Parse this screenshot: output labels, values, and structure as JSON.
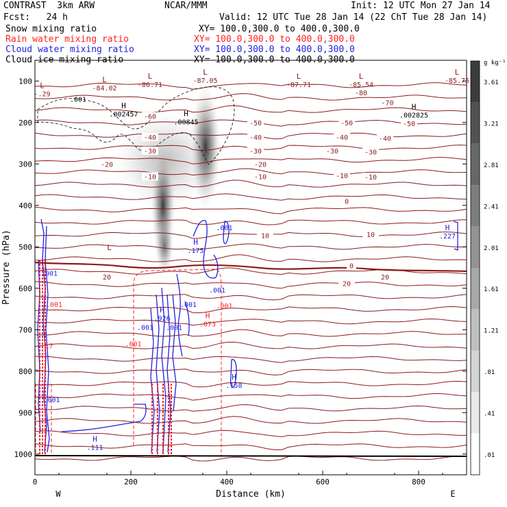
{
  "header": {
    "model": "CONTRAST  3km ARW",
    "center": "NCAR/MMM",
    "init": "Init: 12 UTC Mon 27 Jan 14",
    "fcst": "Fcst:   24 h",
    "valid": "Valid: 12 UTC Tue 28 Jan 14 (22 ChT Tue 28 Jan 14)"
  },
  "fields": [
    {
      "name": "Snow mixing ratio",
      "xy": "XY= 100.0,300.0 to 400.0,300.0",
      "color": "#000000"
    },
    {
      "name": "Rain water mixing ratio",
      "xy": "XY= 100.0,300.0 to 400.0,300.0",
      "color": "#ff2020"
    },
    {
      "name": "Cloud water mixing ratio",
      "xy": "XY= 100.0,300.0 to 400.0,300.0",
      "color": "#2020e0"
    },
    {
      "name": "Cloud ice mixing ratio",
      "xy": "XY= 100.0,300.0 to 400.0,300.0",
      "color": "#000000"
    }
  ],
  "colors": {
    "temperature": "#8b1a1a",
    "rain": "#ff2020",
    "cloud_water": "#2020e0",
    "ice": "#000000"
  },
  "chart_data": {
    "type": "cross-section",
    "xlabel": "Distance (km)",
    "ylabel": "Pressure (hPa)",
    "x_ticks": [
      0,
      200,
      400,
      600,
      800
    ],
    "x_tick_labels": [
      "0",
      "200",
      "400",
      "600",
      "800"
    ],
    "y_ticks": [
      100,
      200,
      300,
      400,
      500,
      600,
      700,
      800,
      900,
      1000
    ],
    "y_tick_labels": [
      "100",
      "200",
      "300",
      "400",
      "500",
      "600",
      "700",
      "800",
      "900",
      "1000"
    ],
    "xlim": [
      0,
      900
    ],
    "ylim": [
      1050,
      50
    ],
    "end_labels": {
      "left": "W",
      "right": "E"
    },
    "colorbar": {
      "unit": "g kg⁻¹",
      "labels": [
        "3.61",
        "3.21",
        "2.81",
        "2.41",
        "2.01",
        "1.61",
        "1.21",
        ".81",
        ".41",
        ".01"
      ],
      "values": [
        3.61,
        3.21,
        2.81,
        2.41,
        2.01,
        1.61,
        1.21,
        0.81,
        0.41,
        0.01
      ]
    },
    "temperature_contours": [
      {
        "label": "-80",
        "p": 128
      },
      {
        "label": "-70",
        "p": 160
      },
      {
        "label": "-60",
        "p": 185
      },
      {
        "label": "-50",
        "p": 205
      },
      {
        "label": "-40",
        "p": 235
      },
      {
        "label": "-30",
        "p": 268
      },
      {
        "label": "-20",
        "p": 300
      },
      {
        "label": "-10",
        "p": 330
      },
      {
        "label": "0",
        "p": 390
      },
      {
        "label": "10",
        "p": 470
      },
      {
        "label": "20",
        "p": 570
      }
    ],
    "temperature_labels": [
      {
        "text": "-80",
        "x": 680,
        "p": 128
      },
      {
        "text": "-70",
        "x": 735,
        "p": 152
      },
      {
        "text": "-60",
        "x": 240,
        "p": 185
      },
      {
        "text": "-50",
        "x": 460,
        "p": 200
      },
      {
        "text": "-50",
        "x": 650,
        "p": 200
      },
      {
        "text": "-50",
        "x": 780,
        "p": 202
      },
      {
        "text": "-40",
        "x": 240,
        "p": 235
      },
      {
        "text": "-40",
        "x": 460,
        "p": 235
      },
      {
        "text": "-40",
        "x": 640,
        "p": 235
      },
      {
        "text": "-40",
        "x": 730,
        "p": 238
      },
      {
        "text": "-30",
        "x": 240,
        "p": 268
      },
      {
        "text": "-30",
        "x": 460,
        "p": 268
      },
      {
        "text": "-30",
        "x": 620,
        "p": 268
      },
      {
        "text": "-30",
        "x": 700,
        "p": 271
      },
      {
        "text": "-20",
        "x": 150,
        "p": 300
      },
      {
        "text": "-20",
        "x": 470,
        "p": 300
      },
      {
        "text": "-10",
        "x": 240,
        "p": 330
      },
      {
        "text": "-10",
        "x": 470,
        "p": 330
      },
      {
        "text": "-10",
        "x": 640,
        "p": 328
      },
      {
        "text": "-10",
        "x": 700,
        "p": 331
      },
      {
        "text": "0",
        "x": 650,
        "p": 390
      },
      {
        "text": "10",
        "x": 480,
        "p": 472
      },
      {
        "text": "10",
        "x": 700,
        "p": 470
      },
      {
        "text": "20",
        "x": 150,
        "p": 572
      },
      {
        "text": "20",
        "x": 650,
        "p": 588
      },
      {
        "text": "20",
        "x": 730,
        "p": 572
      }
    ],
    "extrema": [
      {
        "sym": "L",
        "text": "-.29",
        "x": 15,
        "p": 117,
        "color": "#8b1a1a"
      },
      {
        "sym": "L",
        "text": "-84.02",
        "x": 145,
        "p": 103,
        "color": "#8b1a1a"
      },
      {
        "sym": "L",
        "text": "-86.71",
        "x": 240,
        "p": 95,
        "color": "#8b1a1a"
      },
      {
        "sym": "L",
        "text": "-87.05",
        "x": 355,
        "p": 85,
        "color": "#8b1a1a"
      },
      {
        "sym": "L",
        "text": "-87.71",
        "x": 550,
        "p": 95,
        "color": "#8b1a1a"
      },
      {
        "sym": "L",
        "text": "-85.54",
        "x": 680,
        "p": 95,
        "color": "#8b1a1a"
      },
      {
        "sym": "L",
        "text": "-85.75",
        "x": 880,
        "p": 85,
        "color": "#8b1a1a"
      },
      {
        "sym": "L",
        "text": "",
        "x": 155,
        "p": 508,
        "color": "#8b1a1a"
      },
      {
        "sym": "H",
        "text": ".002457",
        "x": 185,
        "p": 166,
        "color": "#000000"
      },
      {
        "sym": "H",
        "text": ".00845",
        "x": 315,
        "p": 185,
        "color": "#000000"
      },
      {
        "sym": "H",
        "text": ".002825",
        "x": 790,
        "p": 168,
        "color": "#000000"
      },
      {
        "sym": "",
        "text": ".001",
        "x": 90,
        "p": 150,
        "color": "#000000"
      },
      {
        "sym": "H",
        "text": ".227",
        "x": 860,
        "p": 460,
        "color": "#2020e0"
      },
      {
        "sym": "H",
        "text": ".175",
        "x": 335,
        "p": 495,
        "color": "#2020e0"
      },
      {
        "sym": "H",
        "text": ".111",
        "x": 125,
        "p": 970,
        "color": "#2020e0"
      },
      {
        "sym": "H",
        "text": ".158",
        "x": 415,
        "p": 820,
        "color": "#2020e0"
      },
      {
        "sym": "",
        "text": ".001",
        "x": 395,
        "p": 460,
        "color": "#2020e0"
      },
      {
        "sym": "",
        "text": ".001",
        "x": 380,
        "p": 610,
        "color": "#2020e0"
      },
      {
        "sym": "",
        "text": ".001",
        "x": 320,
        "p": 645,
        "color": "#2020e0"
      },
      {
        "sym": "",
        "text": ".001",
        "x": 230,
        "p": 700,
        "color": "#2020e0"
      },
      {
        "sym": "",
        "text": ".001",
        "x": 290,
        "p": 700,
        "color": "#2020e0"
      },
      {
        "sym": "",
        "text": ".001",
        "x": 35,
        "p": 875,
        "color": "#2020e0"
      },
      {
        "sym": "",
        "text": ".001",
        "x": 30,
        "p": 570,
        "color": "#2020e0"
      },
      {
        "sym": "H",
        "text": ".926",
        "x": 265,
        "p": 658,
        "color": "#2020e0"
      },
      {
        "sym": "",
        "text": ".001",
        "x": 395,
        "p": 648,
        "color": "#ff2020"
      },
      {
        "sym": "",
        "text": ".001",
        "x": 205,
        "p": 740,
        "color": "#ff2020"
      },
      {
        "sym": "",
        "text": ".001",
        "x": 40,
        "p": 645,
        "color": "#ff2020"
      },
      {
        "sym": "H",
        "text": ".073",
        "x": 360,
        "p": 672,
        "color": "#ff2020"
      },
      {
        "sym": "",
        "text": ".17",
        "x": 25,
        "p": 745,
        "color": "#ff2020"
      }
    ],
    "freezing_level": {
      "label": "0",
      "p": 545
    }
  }
}
